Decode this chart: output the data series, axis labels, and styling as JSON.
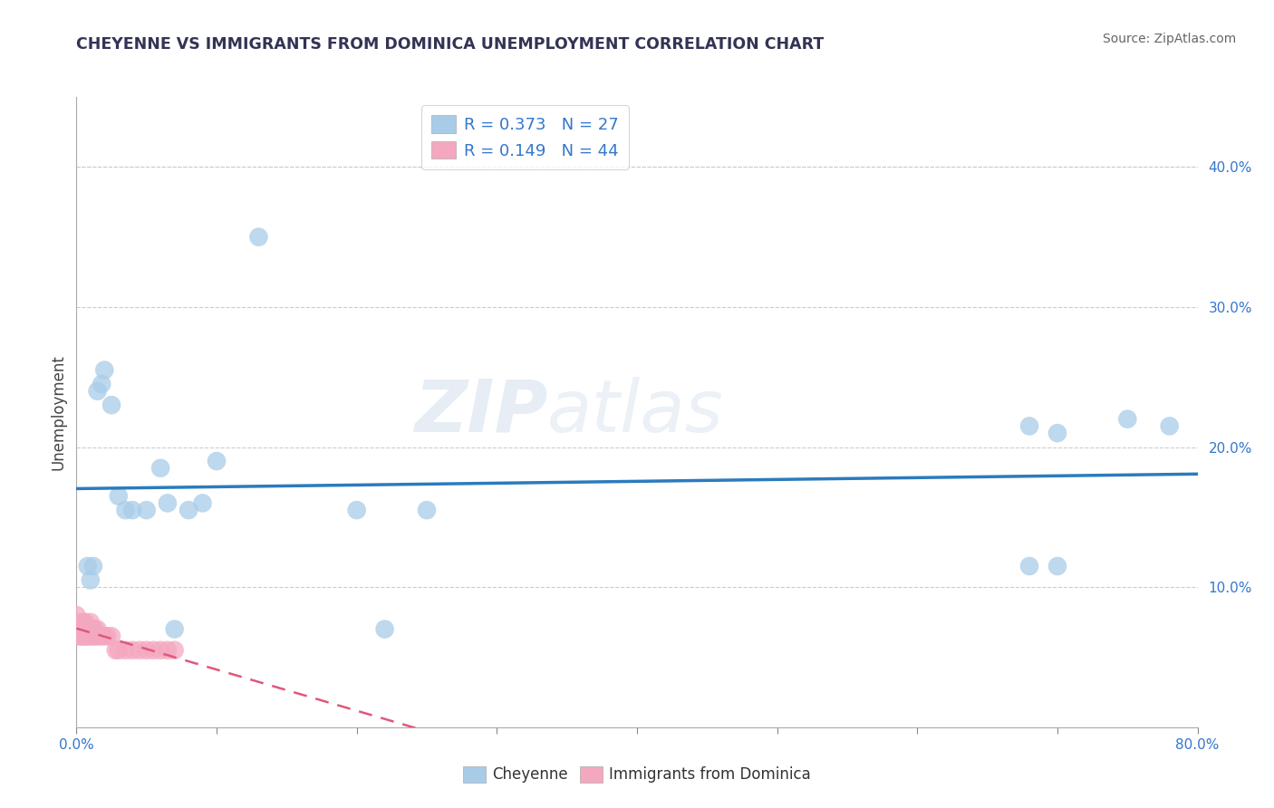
{
  "title": "CHEYENNE VS IMMIGRANTS FROM DOMINICA UNEMPLOYMENT CORRELATION CHART",
  "source": "Source: ZipAtlas.com",
  "ylabel": "Unemployment",
  "xlim": [
    0,
    0.8
  ],
  "ylim": [
    0,
    0.45
  ],
  "xticks_minor": [
    0.0,
    0.1,
    0.2,
    0.3,
    0.4,
    0.5,
    0.6,
    0.7,
    0.8
  ],
  "xticks_labeled": [
    0.0,
    0.8
  ],
  "yticks_right": [
    0.1,
    0.2,
    0.3,
    0.4
  ],
  "cheyenne_R": 0.373,
  "cheyenne_N": 27,
  "dominica_R": 0.149,
  "dominica_N": 44,
  "cheyenne_color": "#a8cce8",
  "dominica_color": "#f4a8c0",
  "line_color_cheyenne": "#2b7bbd",
  "line_color_dominica": "#e05878",
  "background_color": "#ffffff",
  "watermark": "ZIPatlas",
  "cheyenne_x": [
    0.008,
    0.01,
    0.012,
    0.015,
    0.018,
    0.02,
    0.025,
    0.03,
    0.035,
    0.04,
    0.05,
    0.06,
    0.065,
    0.07,
    0.08,
    0.09,
    0.1,
    0.13,
    0.2,
    0.22,
    0.25,
    0.68,
    0.7,
    0.75,
    0.78,
    0.7,
    0.68
  ],
  "cheyenne_y": [
    0.115,
    0.105,
    0.115,
    0.24,
    0.245,
    0.255,
    0.23,
    0.165,
    0.155,
    0.155,
    0.155,
    0.185,
    0.16,
    0.07,
    0.155,
    0.16,
    0.19,
    0.35,
    0.155,
    0.07,
    0.155,
    0.215,
    0.115,
    0.22,
    0.215,
    0.21,
    0.115
  ],
  "dominica_x": [
    0.0,
    0.0,
    0.0,
    0.002,
    0.002,
    0.003,
    0.003,
    0.004,
    0.004,
    0.005,
    0.005,
    0.005,
    0.006,
    0.006,
    0.006,
    0.007,
    0.007,
    0.008,
    0.008,
    0.009,
    0.01,
    0.01,
    0.01,
    0.012,
    0.012,
    0.013,
    0.013,
    0.015,
    0.015,
    0.016,
    0.018,
    0.02,
    0.022,
    0.025,
    0.028,
    0.03,
    0.035,
    0.04,
    0.045,
    0.05,
    0.055,
    0.06,
    0.065,
    0.07
  ],
  "dominica_y": [
    0.07,
    0.075,
    0.08,
    0.065,
    0.07,
    0.065,
    0.07,
    0.065,
    0.07,
    0.065,
    0.07,
    0.075,
    0.065,
    0.07,
    0.075,
    0.065,
    0.07,
    0.065,
    0.07,
    0.065,
    0.065,
    0.07,
    0.075,
    0.065,
    0.07,
    0.065,
    0.07,
    0.065,
    0.07,
    0.065,
    0.065,
    0.065,
    0.065,
    0.065,
    0.055,
    0.055,
    0.055,
    0.055,
    0.055,
    0.055,
    0.055,
    0.055,
    0.055,
    0.055
  ]
}
